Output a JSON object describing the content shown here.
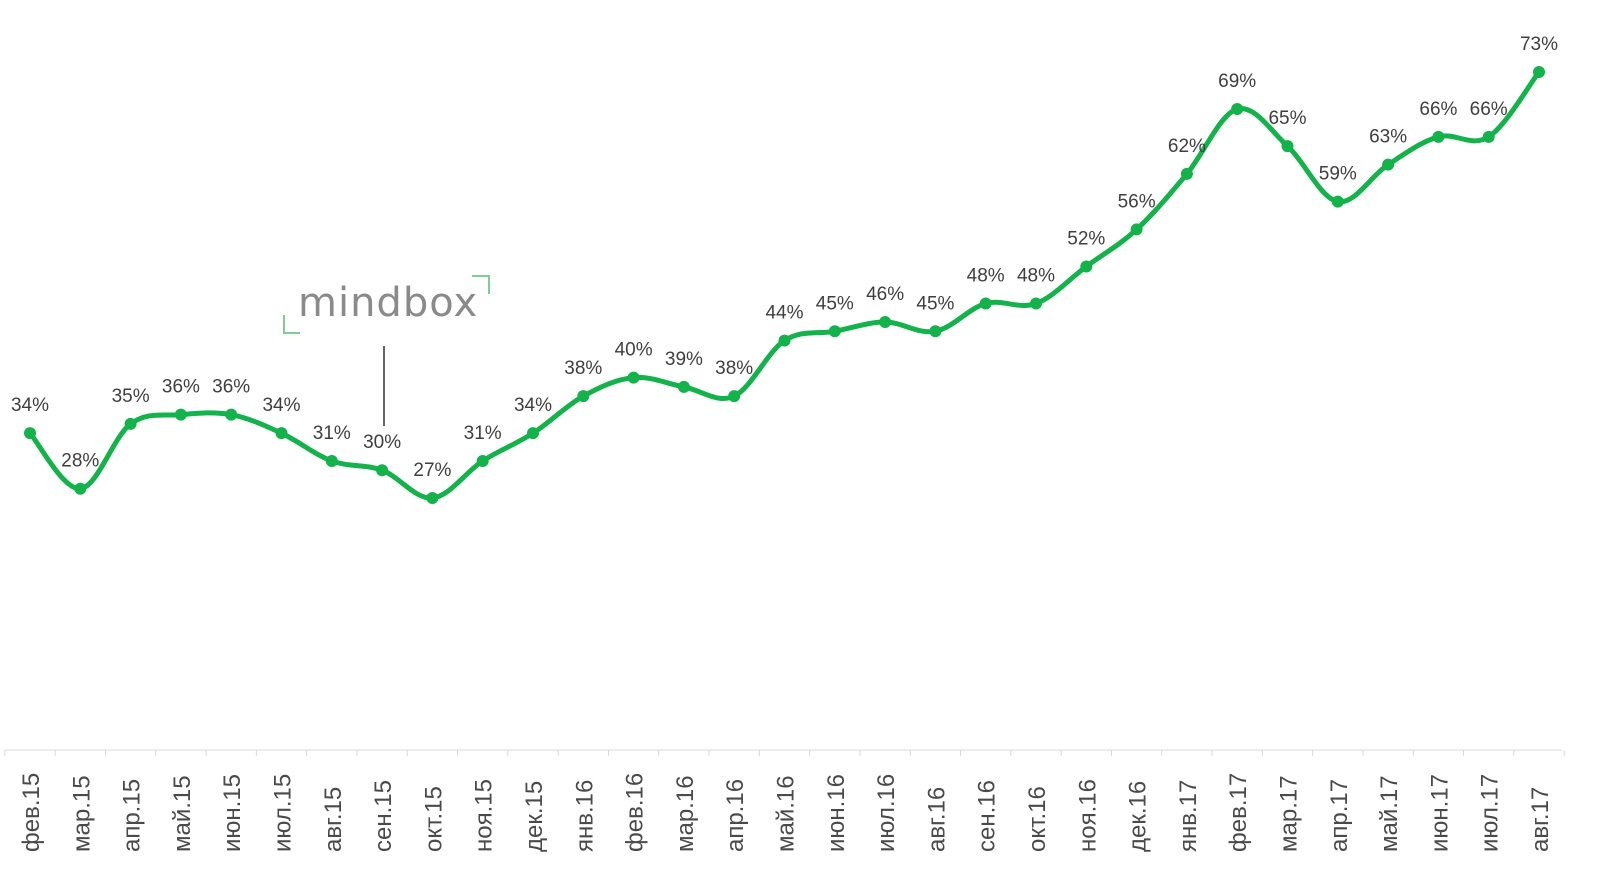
{
  "logo": {
    "text": "mindbox",
    "bracket_color": "#7ccf8f"
  },
  "chart_data": {
    "type": "line",
    "title": "",
    "xlabel": "",
    "ylabel": "",
    "ylim": [
      0,
      80
    ],
    "grid": false,
    "legend": "none",
    "line_color": "#13b24b",
    "categories": [
      "фев.15",
      "мар.15",
      "апр.15",
      "май.15",
      "июн.15",
      "июл.15",
      "авг.15",
      "сен.15",
      "окт.15",
      "ноя.15",
      "дек.15",
      "янв.16",
      "фев.16",
      "мар.16",
      "апр.16",
      "май.16",
      "июн.16",
      "июл.16",
      "авг.16",
      "сен.16",
      "окт.16",
      "ноя.16",
      "дек.16",
      "янв.17",
      "фев.17",
      "мар.17",
      "апр.17",
      "май.17",
      "июн.17",
      "июл.17",
      "авг.17"
    ],
    "values": [
      34,
      28,
      35,
      36,
      36,
      34,
      31,
      30,
      27,
      31,
      34,
      38,
      40,
      39,
      38,
      44,
      45,
      46,
      45,
      48,
      48,
      52,
      56,
      62,
      69,
      65,
      59,
      63,
      66,
      66,
      73
    ],
    "data_labels": [
      "34%",
      "28%",
      "35%",
      "36%",
      "36%",
      "34%",
      "31%",
      "30%",
      "27%",
      "31%",
      "34%",
      "38%",
      "40%",
      "39%",
      "38%",
      "44%",
      "45%",
      "46%",
      "45%",
      "48%",
      "48%",
      "52%",
      "56%",
      "62%",
      "69%",
      "65%",
      "59%",
      "63%",
      "66%",
      "66%",
      "73%"
    ]
  }
}
